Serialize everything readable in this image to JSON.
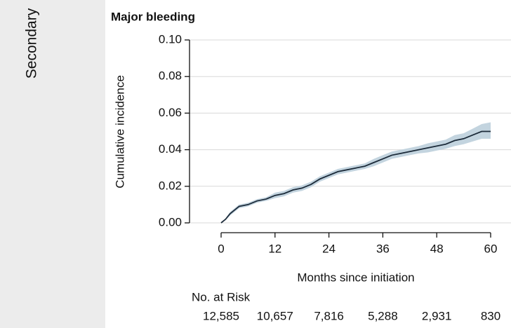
{
  "chart_data": {
    "type": "cumulative-incidence",
    "panel_label": "Secondary",
    "title": "Major bleeding",
    "xlabel": "Months since initiation",
    "ylabel": "Cumulative incidence",
    "x": [
      0,
      1,
      2,
      3,
      4,
      6,
      8,
      10,
      12,
      14,
      16,
      18,
      20,
      22,
      24,
      26,
      28,
      30,
      32,
      34,
      36,
      38,
      40,
      42,
      44,
      46,
      48,
      50,
      52,
      54,
      56,
      58,
      60
    ],
    "values": [
      0,
      0.002,
      0.005,
      0.007,
      0.009,
      0.01,
      0.012,
      0.013,
      0.015,
      0.016,
      0.018,
      0.019,
      0.021,
      0.024,
      0.026,
      0.028,
      0.029,
      0.03,
      0.031,
      0.033,
      0.035,
      0.037,
      0.038,
      0.039,
      0.04,
      0.041,
      0.042,
      0.043,
      0.045,
      0.046,
      0.048,
      0.05,
      0.05
    ],
    "ci_lower": [
      0,
      0.0015,
      0.004,
      0.006,
      0.008,
      0.009,
      0.011,
      0.012,
      0.0135,
      0.0145,
      0.0165,
      0.0175,
      0.0195,
      0.0225,
      0.0245,
      0.0265,
      0.0275,
      0.0285,
      0.0295,
      0.031,
      0.033,
      0.035,
      0.036,
      0.037,
      0.038,
      0.0385,
      0.0395,
      0.0405,
      0.042,
      0.043,
      0.0445,
      0.046,
      0.046
    ],
    "ci_upper": [
      0,
      0.0025,
      0.006,
      0.008,
      0.01,
      0.011,
      0.013,
      0.014,
      0.0165,
      0.0175,
      0.0195,
      0.0205,
      0.0225,
      0.0255,
      0.0275,
      0.0295,
      0.0305,
      0.0315,
      0.0325,
      0.035,
      0.037,
      0.039,
      0.04,
      0.041,
      0.042,
      0.0435,
      0.0445,
      0.0455,
      0.048,
      0.049,
      0.0515,
      0.054,
      0.055
    ],
    "color": "#1c2b3a",
    "band_color": "#c3d4df",
    "xlim": [
      -2,
      62
    ],
    "xticks": [
      0,
      12,
      24,
      36,
      48,
      60
    ],
    "ylim": [
      0,
      0.1
    ],
    "yticks": [
      {
        "value": 0,
        "label": "0.00"
      },
      {
        "value": 0.02,
        "label": "0.02"
      },
      {
        "value": 0.04,
        "label": "0.04"
      },
      {
        "value": 0.06,
        "label": "0.06"
      },
      {
        "value": 0.08,
        "label": "0.08"
      },
      {
        "value": 0.1,
        "label": "0.10"
      }
    ],
    "grid": true,
    "risk_table": {
      "title": "No. at Risk",
      "values": [
        12585,
        10657,
        7816,
        5288,
        2931,
        830
      ],
      "value_labels": [
        "12,585",
        "10,657",
        "7,816",
        "5,288",
        "2,931",
        "830"
      ]
    }
  }
}
